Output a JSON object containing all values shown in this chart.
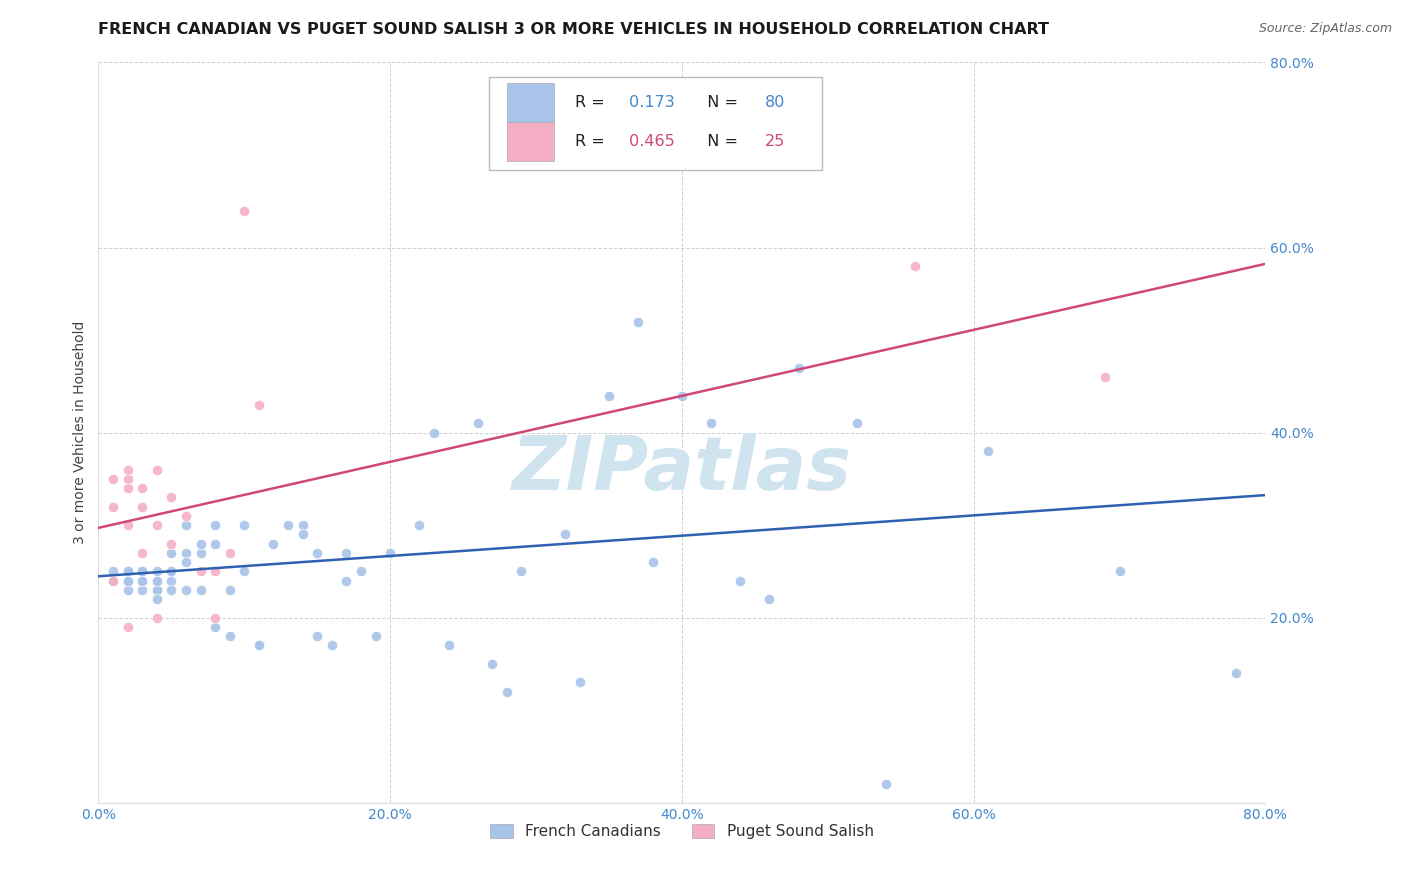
{
  "title": "FRENCH CANADIAN VS PUGET SOUND SALISH 3 OR MORE VEHICLES IN HOUSEHOLD CORRELATION CHART",
  "source": "Source: ZipAtlas.com",
  "ylabel": "3 or more Vehicles in Household",
  "xlim": [
    0.0,
    0.8
  ],
  "ylim": [
    0.0,
    0.8
  ],
  "xticks": [
    0.0,
    0.2,
    0.4,
    0.6,
    0.8
  ],
  "yticks": [
    0.2,
    0.4,
    0.6,
    0.8
  ],
  "xticklabels": [
    "0.0%",
    "20.0%",
    "40.0%",
    "60.0%",
    "80.0%"
  ],
  "yticklabels": [
    "20.0%",
    "40.0%",
    "60.0%",
    "80.0%"
  ],
  "blue_R": 0.173,
  "blue_N": 80,
  "pink_R": 0.465,
  "pink_N": 25,
  "blue_color": "#a8c4e8",
  "pink_color": "#f4afc4",
  "blue_line_color": "#3060b0",
  "pink_line_color": "#d04878",
  "background_color": "#ffffff",
  "grid_color": "#cccccc",
  "blue_x": [
    0.01,
    0.01,
    0.02,
    0.02,
    0.02,
    0.02,
    0.02,
    0.02,
    0.02,
    0.02,
    0.03,
    0.03,
    0.03,
    0.03,
    0.03,
    0.03,
    0.03,
    0.03,
    0.04,
    0.04,
    0.04,
    0.04,
    0.04,
    0.04,
    0.05,
    0.05,
    0.05,
    0.05,
    0.05,
    0.06,
    0.06,
    0.06,
    0.06,
    0.07,
    0.07,
    0.07,
    0.08,
    0.08,
    0.08,
    0.09,
    0.09,
    0.1,
    0.1,
    0.11,
    0.11,
    0.12,
    0.13,
    0.14,
    0.14,
    0.15,
    0.15,
    0.16,
    0.17,
    0.17,
    0.18,
    0.19,
    0.2,
    0.22,
    0.23,
    0.24,
    0.26,
    0.27,
    0.28,
    0.29,
    0.3,
    0.32,
    0.33,
    0.35,
    0.37,
    0.38,
    0.4,
    0.42,
    0.44,
    0.46,
    0.48,
    0.52,
    0.54,
    0.61,
    0.7,
    0.78
  ],
  "blue_y": [
    0.25,
    0.24,
    0.25,
    0.24,
    0.25,
    0.25,
    0.24,
    0.23,
    0.24,
    0.24,
    0.25,
    0.24,
    0.24,
    0.23,
    0.25,
    0.25,
    0.24,
    0.24,
    0.25,
    0.24,
    0.23,
    0.23,
    0.24,
    0.22,
    0.25,
    0.24,
    0.27,
    0.25,
    0.23,
    0.27,
    0.26,
    0.23,
    0.3,
    0.27,
    0.28,
    0.23,
    0.19,
    0.28,
    0.3,
    0.23,
    0.18,
    0.25,
    0.3,
    0.17,
    0.17,
    0.28,
    0.3,
    0.3,
    0.29,
    0.18,
    0.27,
    0.17,
    0.27,
    0.24,
    0.25,
    0.18,
    0.27,
    0.3,
    0.4,
    0.17,
    0.41,
    0.15,
    0.12,
    0.25,
    0.69,
    0.29,
    0.13,
    0.44,
    0.52,
    0.26,
    0.44,
    0.41,
    0.24,
    0.22,
    0.47,
    0.41,
    0.02,
    0.38,
    0.25,
    0.14
  ],
  "pink_x": [
    0.01,
    0.01,
    0.01,
    0.02,
    0.02,
    0.02,
    0.02,
    0.02,
    0.03,
    0.03,
    0.03,
    0.04,
    0.04,
    0.04,
    0.05,
    0.05,
    0.06,
    0.07,
    0.08,
    0.08,
    0.09,
    0.1,
    0.11,
    0.56,
    0.69
  ],
  "pink_y": [
    0.24,
    0.32,
    0.35,
    0.19,
    0.3,
    0.34,
    0.35,
    0.36,
    0.27,
    0.32,
    0.34,
    0.2,
    0.3,
    0.36,
    0.33,
    0.28,
    0.31,
    0.25,
    0.2,
    0.25,
    0.27,
    0.64,
    0.43,
    0.58,
    0.46
  ],
  "title_fontsize": 11.5,
  "label_fontsize": 10,
  "tick_fontsize": 10,
  "marker_size": 55,
  "line_width": 1.8,
  "watermark_text": "ZIPatlas",
  "watermark_color": "#d0e4f0",
  "watermark_fontsize": 54,
  "tick_color": "#4488cc"
}
